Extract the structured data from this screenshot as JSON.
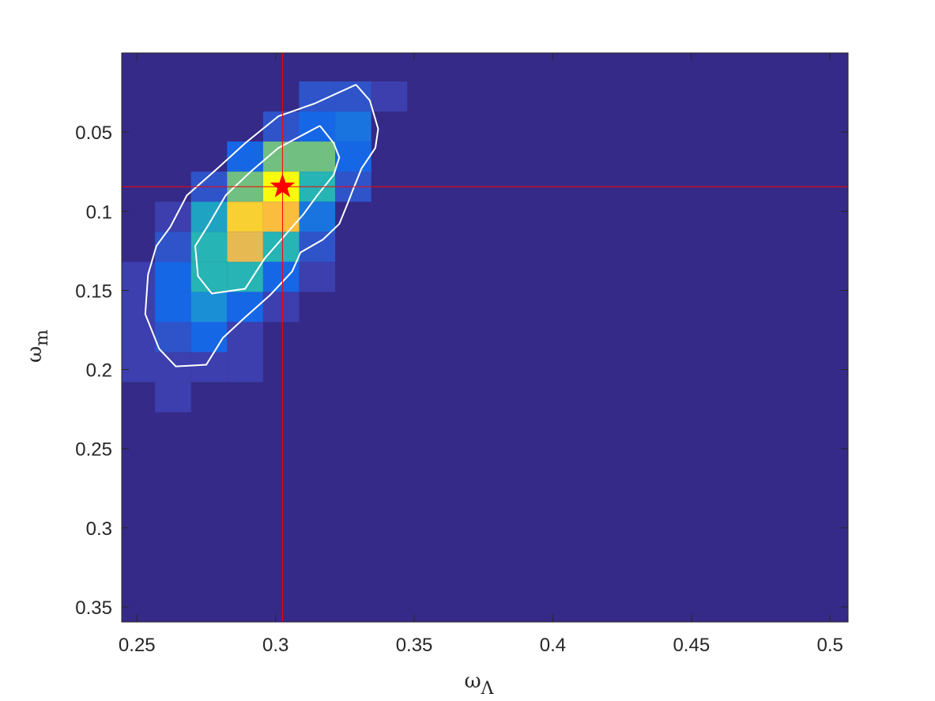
{
  "chart_data": {
    "type": "heatmap",
    "title": "",
    "xlabel": "ω",
    "xlabel_sub": "Λ",
    "ylabel": "ω",
    "ylabel_sub": "m",
    "xlim": [
      0.2445,
      0.5065
    ],
    "ylim": [
      0.0,
      0.3595
    ],
    "y_reversed": true,
    "background_color": "#352a87",
    "x_ticks": [
      0.25,
      0.3,
      0.35,
      0.4,
      0.45,
      0.5
    ],
    "x_tick_labels": [
      "0.25",
      "0.3",
      "0.35",
      "0.4",
      "0.45",
      "0.5"
    ],
    "y_ticks": [
      0.05,
      0.1,
      0.15,
      0.2,
      0.25,
      0.3,
      0.35
    ],
    "y_tick_labels": [
      "0.05",
      "0.1",
      "0.15",
      "0.2",
      "0.25",
      "0.3",
      "0.35"
    ],
    "bin_width_x": 0.013,
    "bin_width_y": 0.019,
    "cells": [
      {
        "x0": 0.3085,
        "y0": 0.018,
        "color": "#2f54c9"
      },
      {
        "x0": 0.3215,
        "y0": 0.018,
        "color": "#2f54c9"
      },
      {
        "x0": 0.3345,
        "y0": 0.018,
        "color": "#3c3fad"
      },
      {
        "x0": 0.2955,
        "y0": 0.037,
        "color": "#2f54c9"
      },
      {
        "x0": 0.3085,
        "y0": 0.037,
        "color": "#1667e6"
      },
      {
        "x0": 0.3215,
        "y0": 0.037,
        "color": "#1a74e0"
      },
      {
        "x0": 0.2955,
        "y0": 0.056,
        "color": "#1a74e0"
      },
      {
        "x0": 0.3085,
        "y0": 0.056,
        "color": "#1ea3c3"
      },
      {
        "x0": 0.3215,
        "y0": 0.056,
        "color": "#1667e6"
      },
      {
        "x0": 0.2825,
        "y0": 0.056,
        "color": "#1667e6"
      },
      {
        "x0": 0.2955,
        "y0": 0.056,
        "color": "#71bf81"
      },
      {
        "x0": 0.3085,
        "y0": 0.056,
        "color": "#71bf81"
      },
      {
        "x0": 0.3215,
        "y0": 0.056,
        "color": "#1667e6"
      },
      {
        "x0": 0.2695,
        "y0": 0.075,
        "color": "#2f54c9"
      },
      {
        "x0": 0.2825,
        "y0": 0.075,
        "color": "#71bf81"
      },
      {
        "x0": 0.2955,
        "y0": 0.075,
        "color": "#f9fb0e"
      },
      {
        "x0": 0.3085,
        "y0": 0.075,
        "color": "#26b4b4"
      },
      {
        "x0": 0.3215,
        "y0": 0.075,
        "color": "#2f54c9"
      },
      {
        "x0": 0.2565,
        "y0": 0.094,
        "color": "#3c3fad"
      },
      {
        "x0": 0.2695,
        "y0": 0.094,
        "color": "#1ea3c3"
      },
      {
        "x0": 0.2825,
        "y0": 0.094,
        "color": "#f8d032"
      },
      {
        "x0": 0.2955,
        "y0": 0.094,
        "color": "#fbbd3e"
      },
      {
        "x0": 0.3085,
        "y0": 0.094,
        "color": "#1a74e0"
      },
      {
        "x0": 0.2565,
        "y0": 0.113,
        "color": "#2f54c9"
      },
      {
        "x0": 0.2695,
        "y0": 0.113,
        "color": "#26b4b4"
      },
      {
        "x0": 0.2825,
        "y0": 0.113,
        "color": "#e6b952"
      },
      {
        "x0": 0.2955,
        "y0": 0.113,
        "color": "#26b4b4"
      },
      {
        "x0": 0.3085,
        "y0": 0.113,
        "color": "#2f54c9"
      },
      {
        "x0": 0.2435,
        "y0": 0.132,
        "color": "#3c3fad"
      },
      {
        "x0": 0.2565,
        "y0": 0.132,
        "color": "#1667e6"
      },
      {
        "x0": 0.2695,
        "y0": 0.132,
        "color": "#26b4b4"
      },
      {
        "x0": 0.2825,
        "y0": 0.132,
        "color": "#26b4b4"
      },
      {
        "x0": 0.2955,
        "y0": 0.132,
        "color": "#1667e6"
      },
      {
        "x0": 0.3085,
        "y0": 0.132,
        "color": "#3c3fad"
      },
      {
        "x0": 0.2435,
        "y0": 0.151,
        "color": "#3c3fad"
      },
      {
        "x0": 0.2565,
        "y0": 0.151,
        "color": "#1667e6"
      },
      {
        "x0": 0.2695,
        "y0": 0.151,
        "color": "#1a8fd6"
      },
      {
        "x0": 0.2825,
        "y0": 0.151,
        "color": "#1667e6"
      },
      {
        "x0": 0.2955,
        "y0": 0.151,
        "color": "#3c3fad"
      },
      {
        "x0": 0.2435,
        "y0": 0.17,
        "color": "#3c3fad"
      },
      {
        "x0": 0.2565,
        "y0": 0.17,
        "color": "#2f54c9"
      },
      {
        "x0": 0.2695,
        "y0": 0.17,
        "color": "#1667e6"
      },
      {
        "x0": 0.2825,
        "y0": 0.17,
        "color": "#3c3fad"
      },
      {
        "x0": 0.2435,
        "y0": 0.189,
        "color": "#3c3fad"
      },
      {
        "x0": 0.2565,
        "y0": 0.189,
        "color": "#3c3fad"
      },
      {
        "x0": 0.2695,
        "y0": 0.189,
        "color": "#3c3fad"
      },
      {
        "x0": 0.2825,
        "y0": 0.189,
        "color": "#3c3fad"
      },
      {
        "x0": 0.2565,
        "y0": 0.208,
        "color": "#3c3fad"
      }
    ],
    "contours": [
      {
        "level": "outer",
        "color": "#ffffff",
        "points": [
          [
            0.329,
            0.02
          ],
          [
            0.334,
            0.03
          ],
          [
            0.337,
            0.048
          ],
          [
            0.336,
            0.06
          ],
          [
            0.331,
            0.073
          ],
          [
            0.328,
            0.086
          ],
          [
            0.326,
            0.095
          ],
          [
            0.323,
            0.108
          ],
          [
            0.317,
            0.118
          ],
          [
            0.309,
            0.126
          ],
          [
            0.306,
            0.138
          ],
          [
            0.298,
            0.153
          ],
          [
            0.289,
            0.167
          ],
          [
            0.281,
            0.18
          ],
          [
            0.275,
            0.197
          ],
          [
            0.264,
            0.198
          ],
          [
            0.258,
            0.187
          ],
          [
            0.253,
            0.165
          ],
          [
            0.254,
            0.14
          ],
          [
            0.257,
            0.122
          ],
          [
            0.262,
            0.11
          ],
          [
            0.268,
            0.09
          ],
          [
            0.279,
            0.073
          ],
          [
            0.289,
            0.057
          ],
          [
            0.301,
            0.04
          ],
          [
            0.314,
            0.032
          ],
          [
            0.329,
            0.02
          ]
        ]
      },
      {
        "level": "inner",
        "color": "#ffffff",
        "points": [
          [
            0.316,
            0.046
          ],
          [
            0.321,
            0.057
          ],
          [
            0.323,
            0.066
          ],
          [
            0.321,
            0.077
          ],
          [
            0.315,
            0.09
          ],
          [
            0.31,
            0.102
          ],
          [
            0.304,
            0.114
          ],
          [
            0.296,
            0.13
          ],
          [
            0.289,
            0.149
          ],
          [
            0.277,
            0.152
          ],
          [
            0.272,
            0.141
          ],
          [
            0.271,
            0.122
          ],
          [
            0.276,
            0.108
          ],
          [
            0.282,
            0.09
          ],
          [
            0.291,
            0.075
          ],
          [
            0.301,
            0.06
          ],
          [
            0.316,
            0.046
          ]
        ]
      }
    ],
    "crosshair": {
      "x": 0.3025,
      "y": 0.0845,
      "color": "#ff0000"
    },
    "marker": {
      "x": 0.3025,
      "y": 0.0845,
      "shape": "star",
      "color": "#ff0000"
    }
  }
}
